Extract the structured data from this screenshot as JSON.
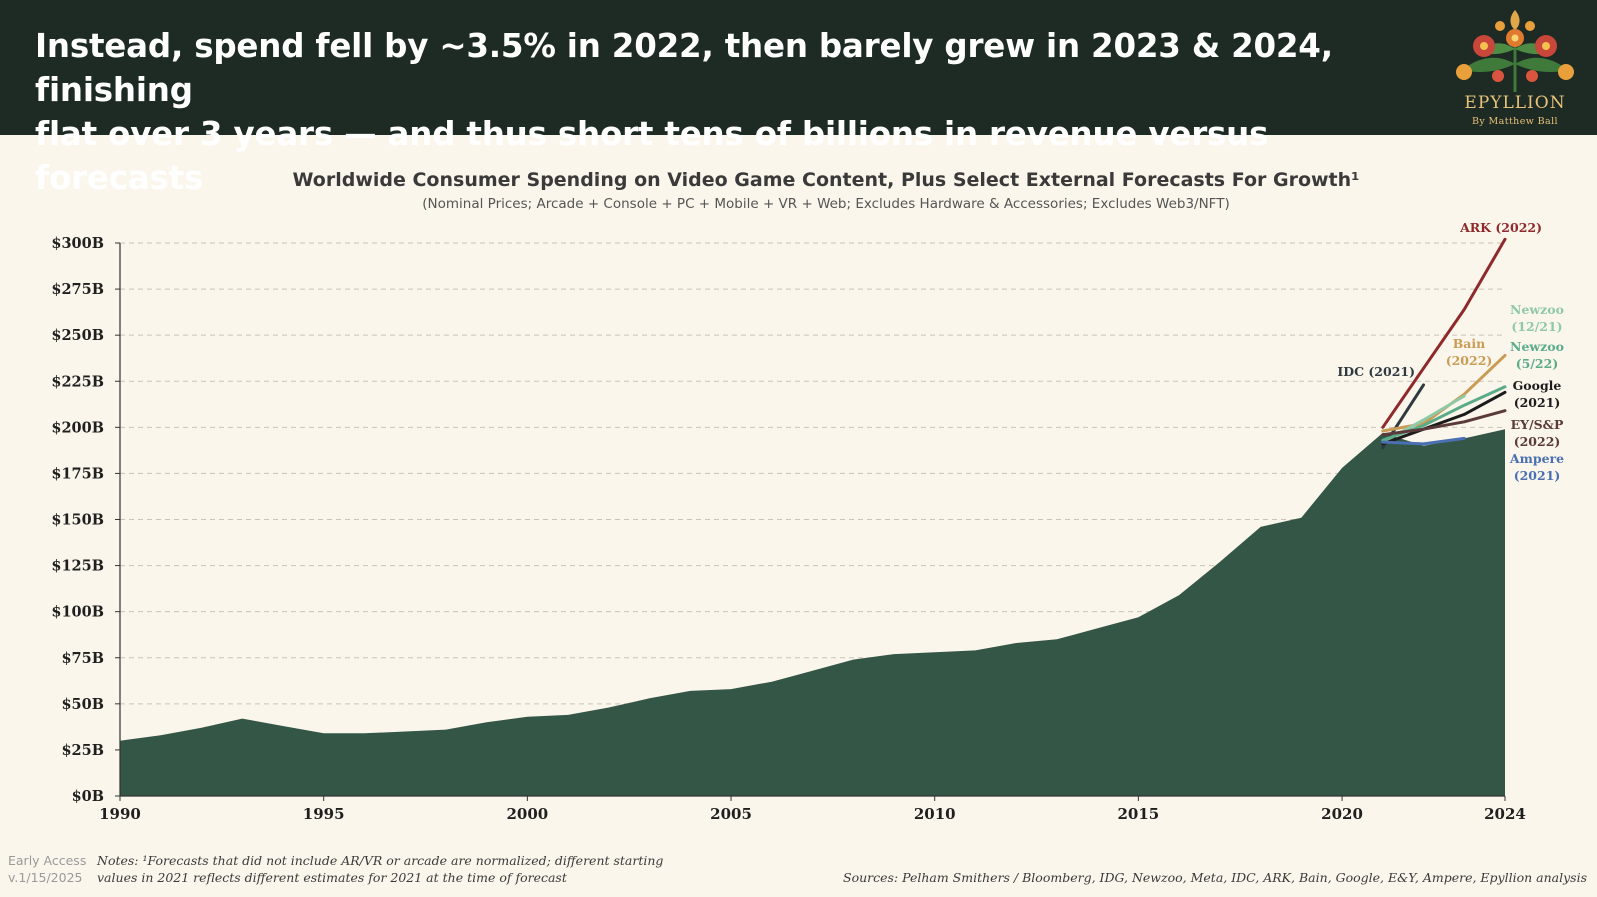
{
  "header": {
    "headline_line1": "Instead, spend fell by ~3.5% in 2022, then barely grew in 2023 & 2024, finishing",
    "headline_line2": "flat over 3 years — and thus short tens of billions in revenue versus forecasts",
    "logo_name": "EPYLLION",
    "logo_byline": "By Matthew Ball"
  },
  "chart_data": {
    "type": "area",
    "title": "Worldwide Consumer Spending on Video Game Content, Plus Select External Forecasts For Growth¹",
    "subtitle": "(Nominal Prices; Arcade + Console + PC + Mobile + VR + Web; Excludes Hardware & Accessories; Excludes Web3/NFT)",
    "xlabel": "",
    "ylabel": "",
    "ylim": [
      0,
      300
    ],
    "xlim": [
      1990,
      2024
    ],
    "grid": "horizontal dashed",
    "x_ticks": [
      {
        "value": 1990,
        "label": "1990"
      },
      {
        "value": 1995,
        "label": "1995"
      },
      {
        "value": 2000,
        "label": "2000"
      },
      {
        "value": 2005,
        "label": "2005"
      },
      {
        "value": 2010,
        "label": "2010"
      },
      {
        "value": 2015,
        "label": "2015"
      },
      {
        "value": 2020,
        "label": "2020"
      },
      {
        "value": 2024,
        "label": "2024"
      }
    ],
    "y_ticks": [
      {
        "value": 0,
        "label": "$0B"
      },
      {
        "value": 25,
        "label": "$25B"
      },
      {
        "value": 50,
        "label": "$50B"
      },
      {
        "value": 75,
        "label": "$75B"
      },
      {
        "value": 100,
        "label": "$100B"
      },
      {
        "value": 125,
        "label": "$125B"
      },
      {
        "value": 150,
        "label": "$150B"
      },
      {
        "value": 175,
        "label": "$175B"
      },
      {
        "value": 200,
        "label": "$200B"
      },
      {
        "value": 225,
        "label": "$225B"
      },
      {
        "value": 250,
        "label": "$250B"
      },
      {
        "value": 275,
        "label": "$275B"
      },
      {
        "value": 300,
        "label": "$300B"
      }
    ],
    "area_color": "#345646",
    "spending": {
      "x": [
        1990,
        1991,
        1992,
        1993,
        1994,
        1995,
        1996,
        1997,
        1998,
        1999,
        2000,
        2001,
        2002,
        2003,
        2004,
        2005,
        2006,
        2007,
        2008,
        2009,
        2010,
        2011,
        2012,
        2013,
        2014,
        2015,
        2016,
        2017,
        2018,
        2019,
        2020,
        2021,
        2022,
        2023,
        2024
      ],
      "y": [
        30,
        33,
        37,
        42,
        38,
        34,
        34,
        35,
        36,
        40,
        43,
        44,
        48,
        53,
        57,
        58,
        62,
        68,
        74,
        77,
        78,
        79,
        83,
        85,
        91,
        97,
        109,
        127,
        146,
        151,
        178,
        197,
        190,
        194,
        199
      ]
    },
    "forecasts": [
      {
        "name": "ARK (2022)",
        "color": "#8e2a2a",
        "x": [
          2021,
          2022,
          2023,
          2024
        ],
        "y": [
          200,
          232,
          264,
          302
        ]
      },
      {
        "name": "IDC (2021)",
        "color": "#2f3a40",
        "x": [
          2021,
          2022
        ],
        "y": [
          189,
          223
        ]
      },
      {
        "name": "Bain (2022)",
        "color": "#c99c55",
        "x": [
          2021,
          2022,
          2023,
          2024
        ],
        "y": [
          198,
          202,
          218,
          239
        ]
      },
      {
        "name": "Newzoo (12/21)",
        "color": "#8fc9a7",
        "x": [
          2021,
          2022,
          2023
        ],
        "y": [
          192,
          204,
          217
        ]
      },
      {
        "name": "Newzoo (5/22)",
        "color": "#5aab87",
        "x": [
          2021,
          2022,
          2023,
          2024
        ],
        "y": [
          193,
          201,
          212,
          222
        ]
      },
      {
        "name": "Google (2021)",
        "color": "#1c1c1c",
        "x": [
          2021,
          2022,
          2023,
          2024
        ],
        "y": [
          191,
          199,
          207,
          219
        ]
      },
      {
        "name": "EY/S&P (2022)",
        "color": "#5a3a3a",
        "x": [
          2021,
          2022,
          2023,
          2024
        ],
        "y": [
          196,
          199,
          203,
          209
        ]
      },
      {
        "name": "Ampere (2021)",
        "color": "#4a6fb2",
        "x": [
          2021,
          2022,
          2023
        ],
        "y": [
          192,
          191,
          194
        ]
      }
    ],
    "forecast_labels": [
      {
        "lines": [
          "ARK (2022)"
        ],
        "color": "#8e2a2a"
      },
      {
        "lines": [
          "IDC (2021)"
        ],
        "color": "#2f3a40"
      },
      {
        "lines": [
          "Bain",
          "(2022)"
        ],
        "color": "#c99c55"
      },
      {
        "lines": [
          "Newzoo",
          "(12/21)"
        ],
        "color": "#8fc9a7"
      },
      {
        "lines": [
          "Newzoo",
          "(5/22)"
        ],
        "color": "#5aab87"
      },
      {
        "lines": [
          "Google",
          "(2021)"
        ],
        "color": "#1c1c1c"
      },
      {
        "lines": [
          "EY/S&P",
          "(2022)"
        ],
        "color": "#5a3a3a"
      },
      {
        "lines": [
          "Ampere",
          "(2021)"
        ],
        "color": "#4a6fb2"
      }
    ]
  },
  "footer": {
    "early_access_line1": "Early Access",
    "early_access_line2": "v.1/15/2025",
    "notes_line1": "Notes: ¹Forecasts that did not include AR/VR or arcade are normalized; different starting",
    "notes_line2": "values in 2021 reflects different estimates for 2021 at the time of forecast",
    "sources": "Sources: Pelham Smithers / Bloomberg, IDG, Newzoo, Meta, IDC, ARK, Bain, Google, E&Y, Ampere, Epyllion analysis"
  }
}
